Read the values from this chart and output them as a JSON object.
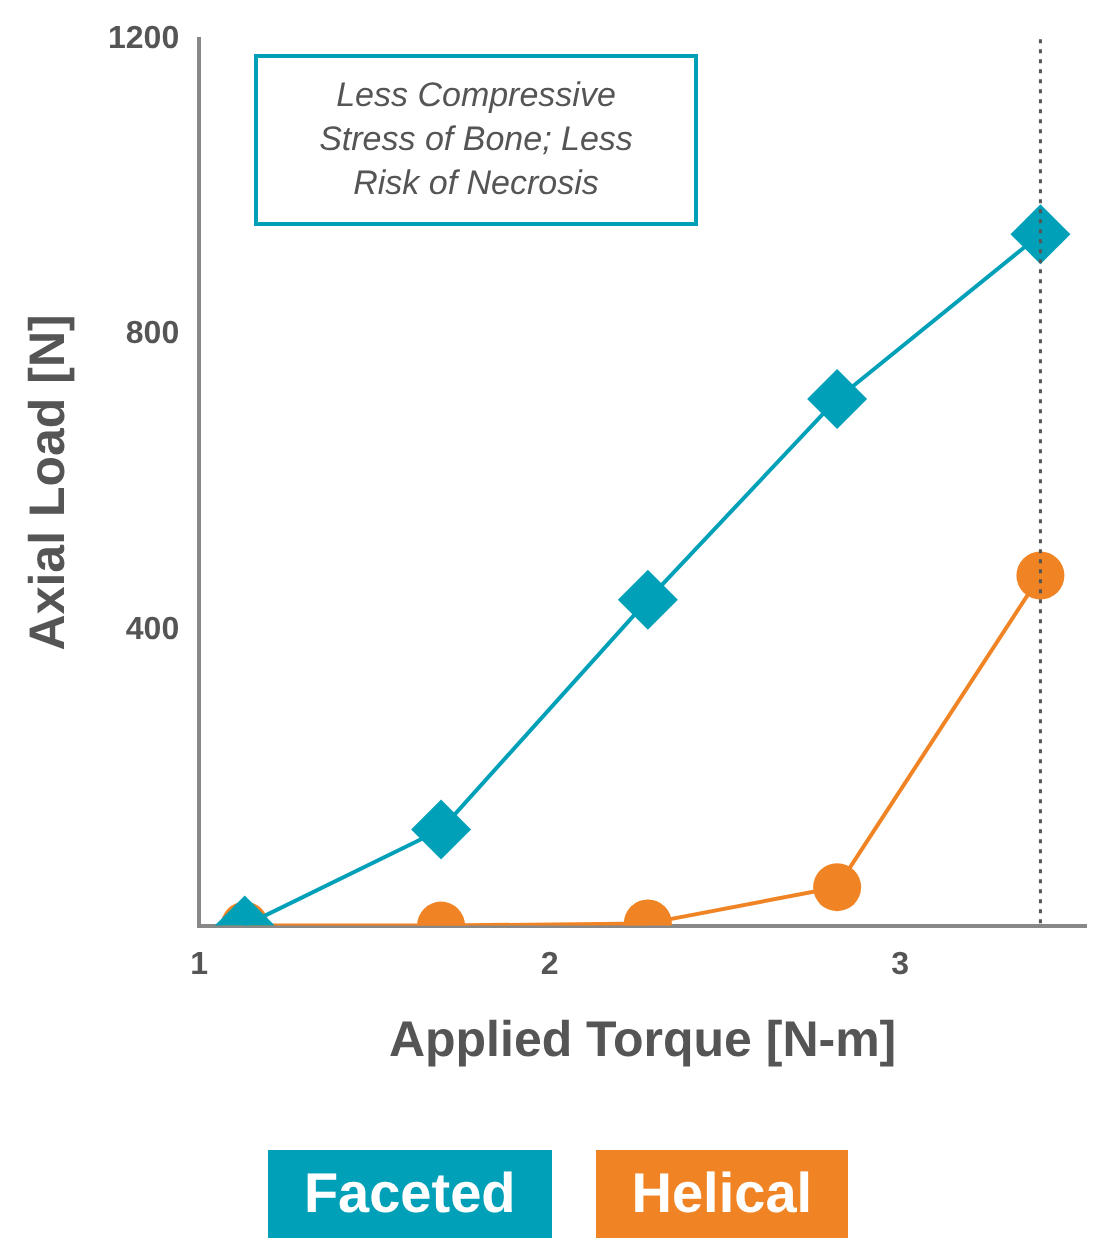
{
  "chart_data": {
    "type": "line",
    "xlabel": "Applied Torque [N-m]",
    "ylabel": "Axial Load [N]",
    "annotations": [
      "Less Compressive Stress of Bone; Less Risk of Necrosis"
    ],
    "series": [
      {
        "name": "Faceted",
        "color": "#00a0b8",
        "marker": "diamond",
        "x": [
          1.13,
          1.69,
          2.28,
          2.82,
          3.4
        ],
        "values": [
          0,
          130,
          441,
          713,
          936
        ]
      },
      {
        "name": "Helical",
        "color": "#f08323",
        "marker": "circle",
        "x": [
          1.13,
          1.69,
          2.28,
          2.82,
          3.4
        ],
        "values": [
          0,
          0,
          3,
          52,
          474
        ]
      }
    ],
    "xlim": [
      1,
      3.53
    ],
    "xticks": [
      1,
      2,
      3
    ],
    "ylim": [
      0,
      1200
    ],
    "yticks": [
      400,
      800,
      1200
    ],
    "ref_lines": [
      {
        "axis": "x",
        "value": 3.4,
        "color": "#555555",
        "line_style": "dotted"
      }
    ],
    "grid": false,
    "legend": "bottom"
  }
}
